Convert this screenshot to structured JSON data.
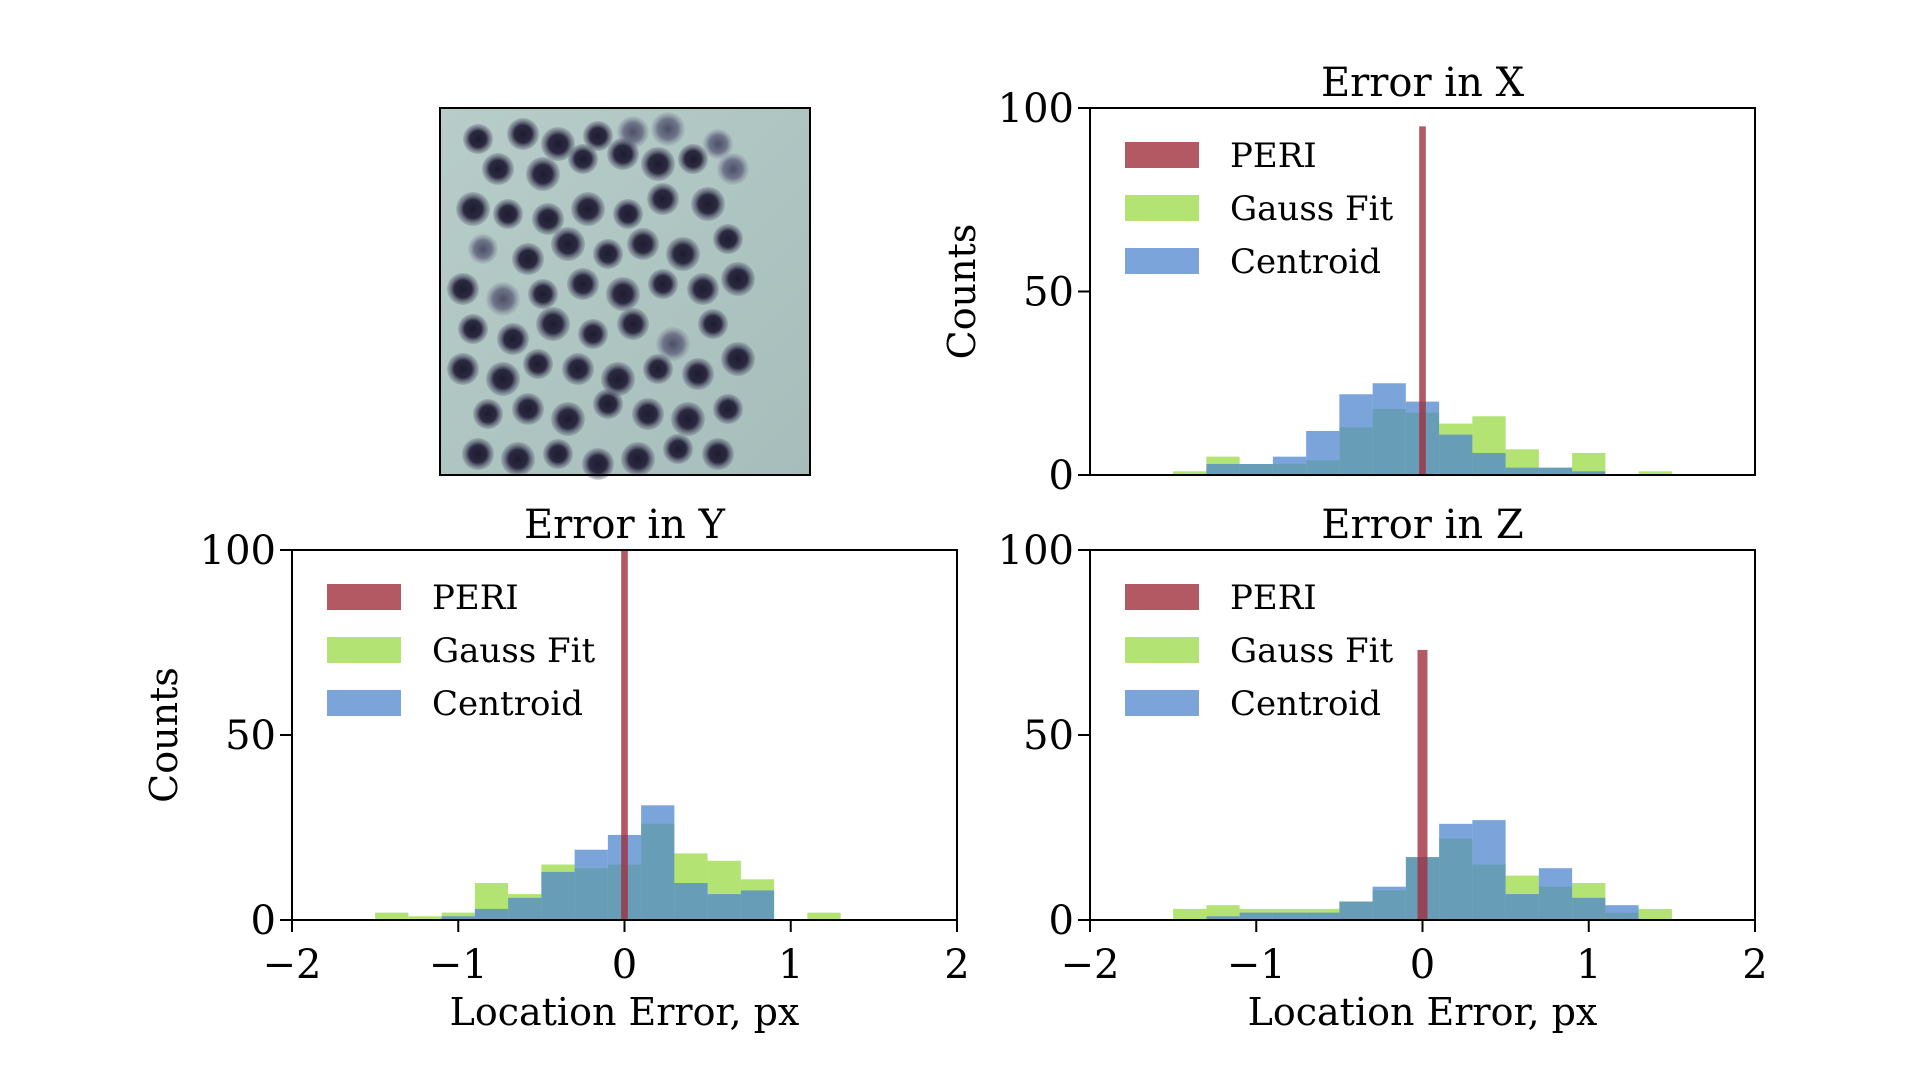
{
  "figure": {
    "image_panel": {
      "description_name": "particle-image"
    },
    "colors": {
      "PERI": "#a0303c",
      "Gauss Fit": "#a6de5a",
      "Centroid": "#4f86cf"
    }
  },
  "chart_data": [
    {
      "id": "error-x",
      "type": "bar",
      "title": "Error in X",
      "xlabel": "",
      "ylabel": "Counts",
      "xlim": [
        -2,
        2
      ],
      "ylim": [
        0,
        100
      ],
      "yticks": [
        0,
        50,
        100
      ],
      "xticks": [],
      "legend": [
        "PERI",
        "Gauss Fit",
        "Centroid"
      ],
      "legend_position": "upper-left",
      "series": [
        {
          "name": "Gauss Fit",
          "bin_edges": [
            -1.5,
            -1.3,
            -1.1,
            -0.9,
            -0.7,
            -0.5,
            -0.3,
            -0.1,
            0.1,
            0.3,
            0.5,
            0.7,
            0.9,
            1.1,
            1.3,
            1.5
          ],
          "counts": [
            1,
            5,
            3,
            3,
            4,
            13,
            18,
            17,
            14,
            16,
            7,
            2,
            6,
            0,
            1
          ]
        },
        {
          "name": "Centroid",
          "bin_edges": [
            -1.3,
            -1.1,
            -0.9,
            -0.7,
            -0.5,
            -0.3,
            -0.1,
            0.1,
            0.3,
            0.5,
            0.7,
            0.9,
            1.1
          ],
          "counts": [
            3,
            3,
            5,
            12,
            22,
            25,
            20,
            11,
            6,
            2,
            2,
            1
          ]
        },
        {
          "name": "PERI",
          "bin_edges": [
            -0.02,
            0.02
          ],
          "counts": [
            95
          ]
        }
      ]
    },
    {
      "id": "error-y",
      "type": "bar",
      "title": "Error in Y",
      "xlabel": "Location Error, px",
      "ylabel": "Counts",
      "xlim": [
        -2,
        2
      ],
      "ylim": [
        0,
        100
      ],
      "yticks": [
        0,
        50,
        100
      ],
      "xticks": [
        -2,
        -1,
        0,
        1,
        2
      ],
      "xtick_labels": [
        "−2",
        "−1",
        "0",
        "1",
        "2"
      ],
      "legend": [
        "PERI",
        "Gauss Fit",
        "Centroid"
      ],
      "legend_position": "upper-left",
      "series": [
        {
          "name": "Gauss Fit",
          "bin_edges": [
            -1.5,
            -1.3,
            -1.1,
            -0.9,
            -0.7,
            -0.5,
            -0.3,
            -0.1,
            0.1,
            0.3,
            0.5,
            0.7,
            0.9,
            1.1,
            1.3
          ],
          "counts": [
            2,
            1,
            2,
            10,
            7,
            15,
            14,
            15,
            26,
            18,
            16,
            11,
            0,
            2
          ]
        },
        {
          "name": "Centroid",
          "bin_edges": [
            -1.1,
            -0.9,
            -0.7,
            -0.5,
            -0.3,
            -0.1,
            0.1,
            0.3,
            0.5,
            0.7,
            0.9
          ],
          "counts": [
            1,
            3,
            6,
            13,
            19,
            23,
            31,
            10,
            7,
            8
          ]
        },
        {
          "name": "PERI",
          "bin_edges": [
            -0.02,
            0.02
          ],
          "counts": [
            100
          ]
        }
      ]
    },
    {
      "id": "error-z",
      "type": "bar",
      "title": "Error in Z",
      "xlabel": "Location Error, px",
      "ylabel": "",
      "xlim": [
        -2,
        2
      ],
      "ylim": [
        0,
        100
      ],
      "yticks": [
        0,
        50,
        100
      ],
      "xticks": [
        -2,
        -1,
        0,
        1,
        2
      ],
      "xtick_labels": [
        "−2",
        "−1",
        "0",
        "1",
        "2"
      ],
      "legend": [
        "PERI",
        "Gauss Fit",
        "Centroid"
      ],
      "legend_position": "upper-left",
      "series": [
        {
          "name": "Gauss Fit",
          "bin_edges": [
            -1.5,
            -1.3,
            -1.1,
            -0.9,
            -0.7,
            -0.5,
            -0.3,
            -0.1,
            0.1,
            0.3,
            0.5,
            0.7,
            0.9,
            1.1,
            1.3,
            1.5
          ],
          "counts": [
            3,
            4,
            3,
            3,
            3,
            5,
            8,
            17,
            22,
            15,
            12,
            9,
            10,
            2,
            3
          ]
        },
        {
          "name": "Centroid",
          "bin_edges": [
            -1.3,
            -1.1,
            -0.9,
            -0.7,
            -0.5,
            -0.3,
            -0.1,
            0.1,
            0.3,
            0.5,
            0.7,
            0.9,
            1.1,
            1.3
          ],
          "counts": [
            1,
            2,
            2,
            2,
            5,
            9,
            17,
            26,
            27,
            7,
            14,
            6,
            4
          ]
        },
        {
          "name": "PERI",
          "bin_edges": [
            -0.03,
            0.03
          ],
          "counts": [
            73
          ]
        }
      ]
    }
  ]
}
